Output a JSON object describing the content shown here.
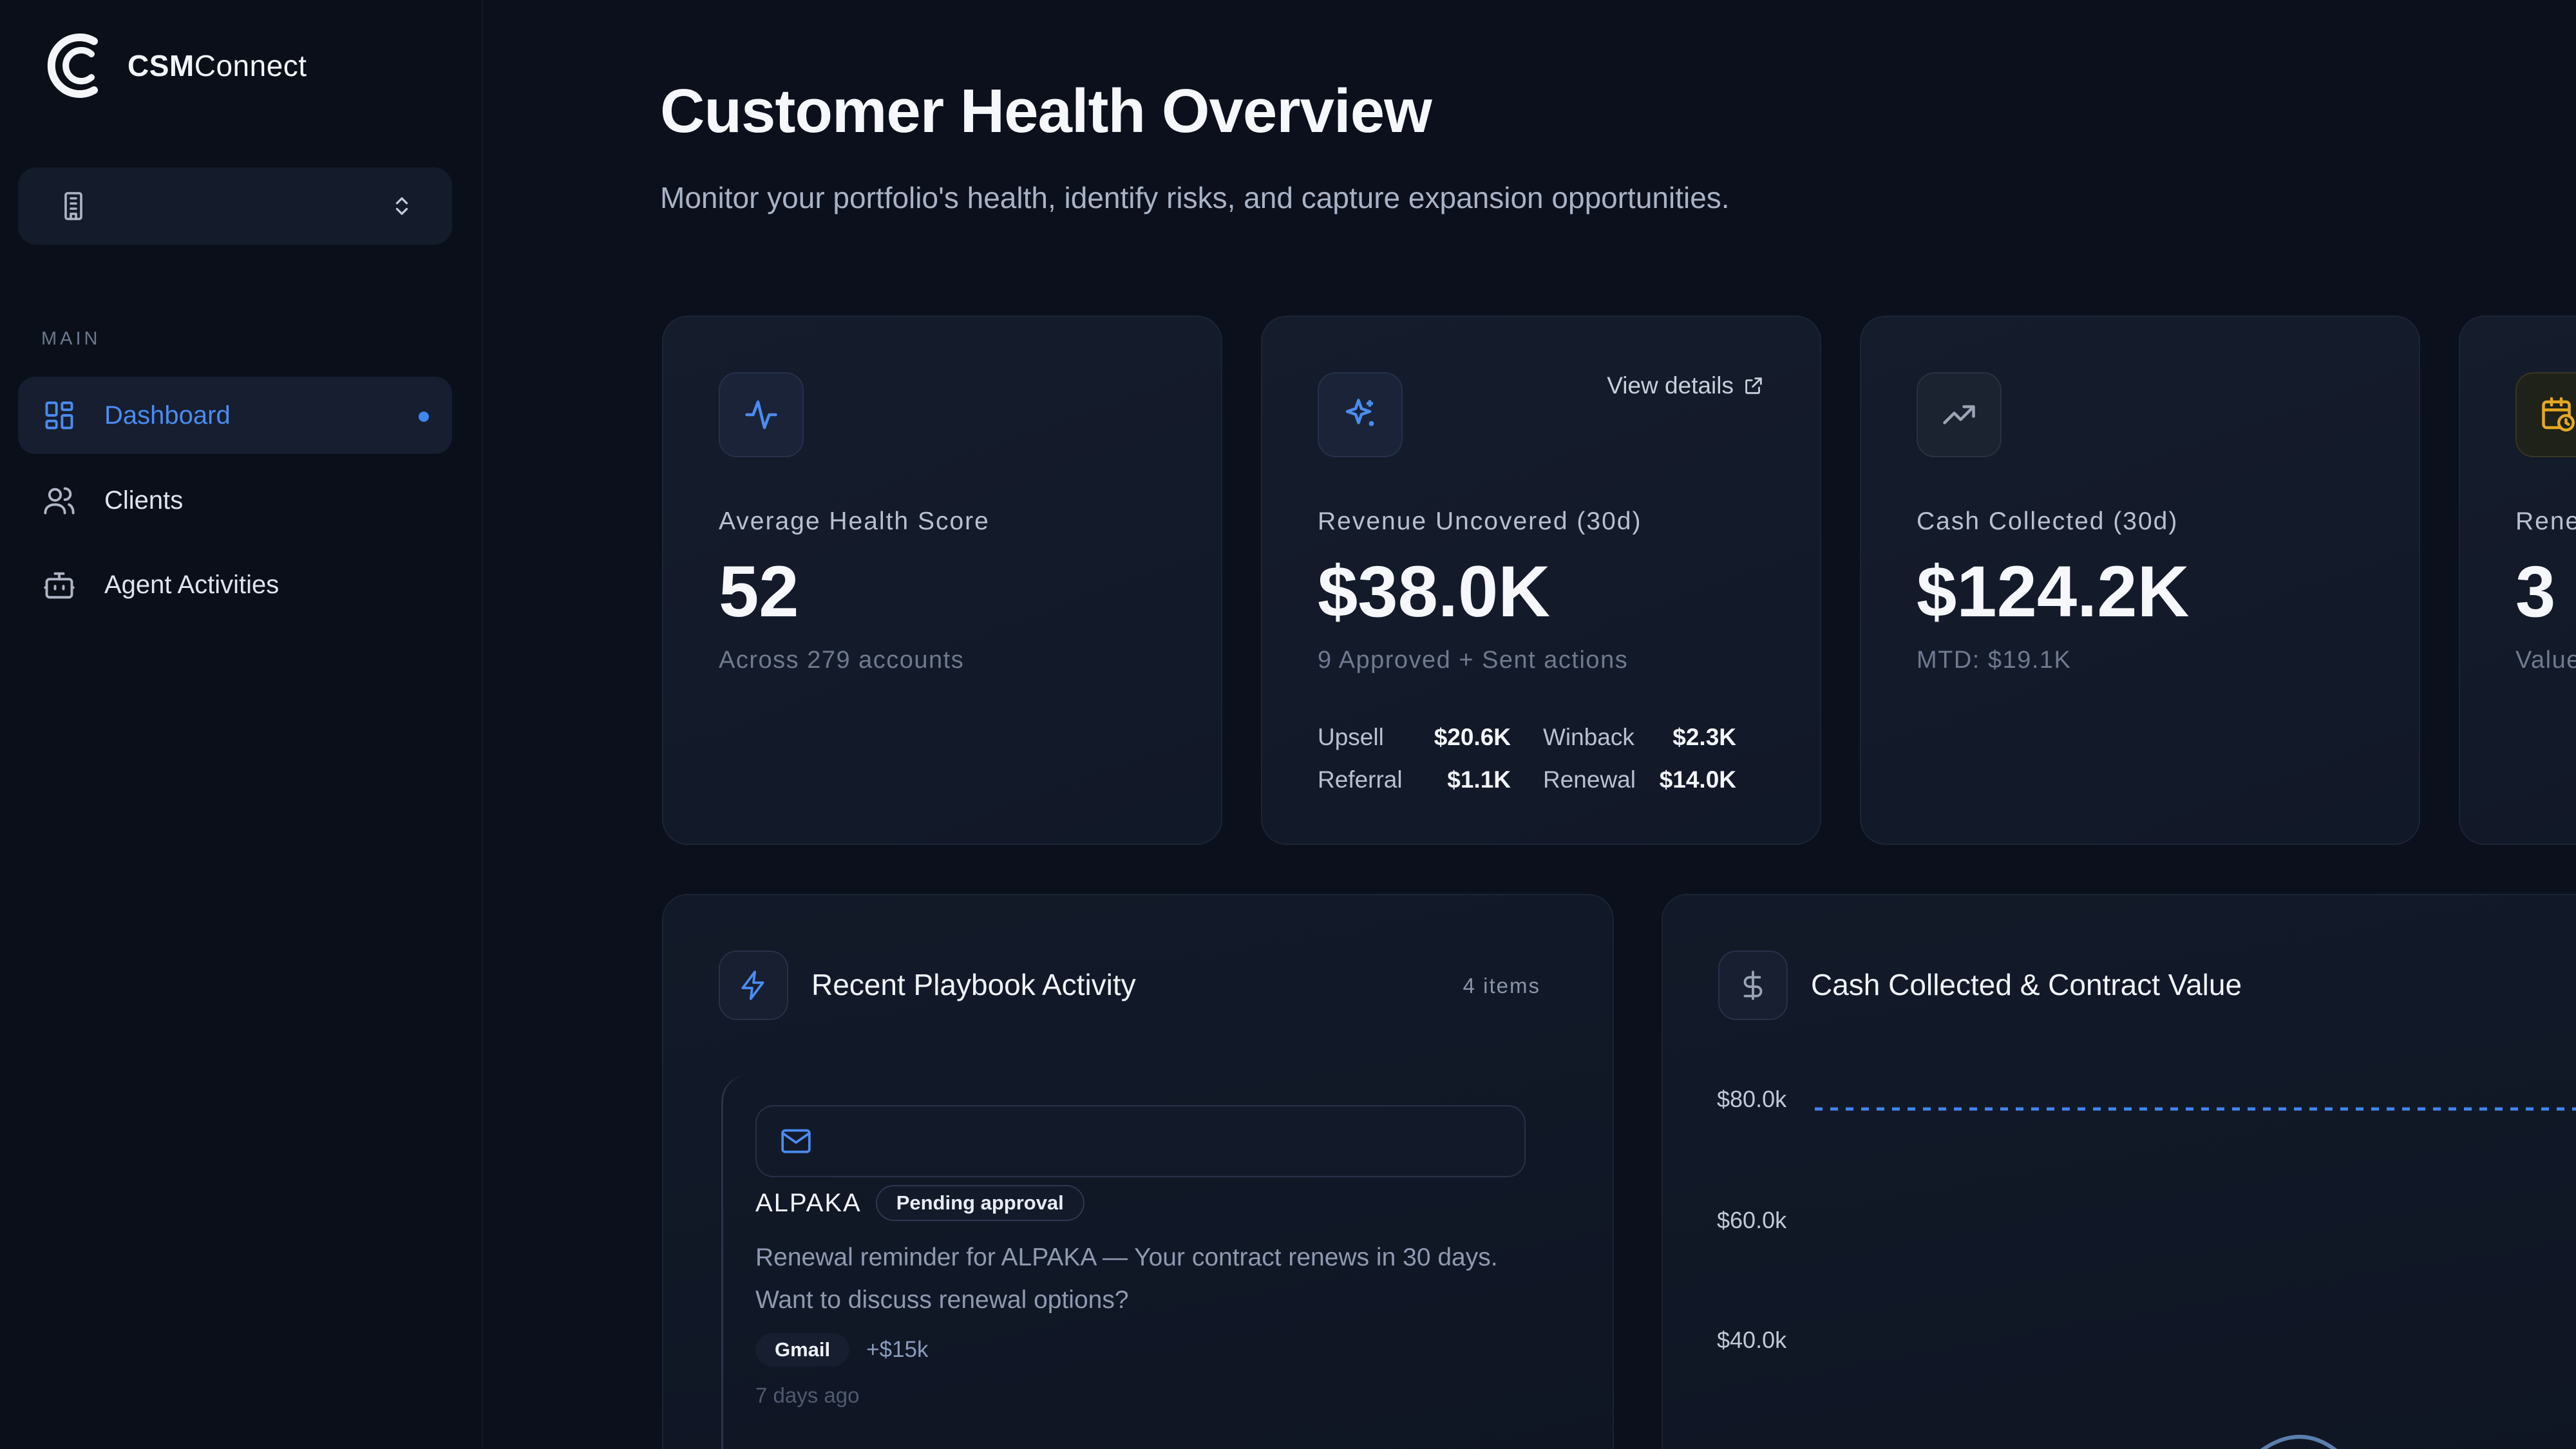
{
  "brand": {
    "bold": "CSM",
    "rest": "Connect"
  },
  "sidebar": {
    "workspace_icon": "building-icon",
    "section_label": "MAIN",
    "items": [
      {
        "label": "Dashboard",
        "icon": "grid-icon",
        "active": true
      },
      {
        "label": "Clients",
        "icon": "users-icon",
        "active": false
      },
      {
        "label": "Agent Activities",
        "icon": "bot-icon",
        "active": false
      }
    ]
  },
  "header": {
    "title": "Customer Health Overview",
    "subtitle": "Monitor your portfolio's health, identify risks, and capture expansion opportunities."
  },
  "stats": [
    {
      "icon": "activity-icon",
      "label": "Average Health Score",
      "value": "52",
      "sub": "Across 279 accounts"
    },
    {
      "icon": "sparkles-icon",
      "label": "Revenue Uncovered (30d)",
      "value": "$38.0K",
      "sub": "9 Approved + Sent actions",
      "link": "View details",
      "breakdown": [
        {
          "label": "Upsell",
          "value": "$20.6K"
        },
        {
          "label": "Winback",
          "value": "$2.3K"
        },
        {
          "label": "Referral",
          "value": "$1.1K"
        },
        {
          "label": "Renewal",
          "value": "$14.0K"
        }
      ]
    },
    {
      "icon": "trending-up-icon",
      "label": "Cash Collected (30d)",
      "value": "$124.2K",
      "sub": "MTD: $19.1K"
    },
    {
      "icon": "calendar-clock-icon",
      "label": "Rene",
      "value": "3",
      "sub": "Value"
    }
  ],
  "playbook": {
    "title": "Recent Playbook Activity",
    "count": "4 items",
    "activity": {
      "client": "ALPAKA",
      "status": "Pending approval",
      "description": "Renewal reminder for ALPAKA — Your contract renews in 30 days. Want to discuss renewal options?",
      "channel": "Gmail",
      "value": "+$15k",
      "time": "7 days ago"
    }
  },
  "cash_chart": {
    "title": "Cash Collected & Contract Value",
    "y_ticks": [
      "$80.0k",
      "$60.0k",
      "$40.0k"
    ]
  },
  "colors": {
    "accent": "#3f86ef",
    "background": "#0b101c",
    "card": "#131a2a",
    "warning": "#e5a823"
  }
}
